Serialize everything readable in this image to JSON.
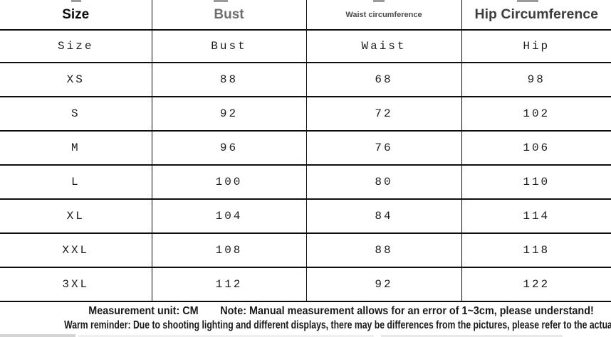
{
  "table": {
    "header_row1": [
      "Size",
      "Bust",
      "Waist circumference",
      "Hip Circumference"
    ],
    "header_row2": [
      "Size",
      "Bust",
      "Waist",
      "Hip"
    ],
    "rows": [
      [
        "XS",
        "88",
        "68",
        "98"
      ],
      [
        "S",
        "92",
        "72",
        "102"
      ],
      [
        "M",
        "96",
        "76",
        "106"
      ],
      [
        "L",
        "100",
        "80",
        "110"
      ],
      [
        "XL",
        "104",
        "84",
        "114"
      ],
      [
        "XXL",
        "108",
        "88",
        "118"
      ],
      [
        "3XL",
        "112",
        "92",
        "122"
      ]
    ]
  },
  "footer": {
    "measurement_unit": "Measurement unit: CM",
    "note": "Note: Manual measurement allows for an error of 1~3cm, please understand!",
    "warm_reminder": "Warm reminder: Due to shooting lighting and different displays, there may be differences from the pictures, please refer to the actual product!"
  },
  "colors": {
    "border": "#0d0d0d",
    "header_size_text": "#0c0c0c",
    "header_bust_text": "#6e6e6e",
    "header_waist_text": "#4a4a4a",
    "header_hip_text": "#3d3d3d",
    "body_text": "#1d1d1d",
    "footer_text": "#1a1a1a",
    "background": "#ffffff"
  }
}
